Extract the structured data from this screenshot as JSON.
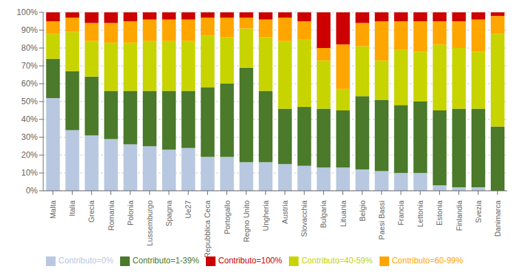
{
  "chart_data": {
    "type": "bar",
    "stacked": true,
    "categories": [
      "Malta",
      "Italia",
      "Grecia",
      "Romania",
      "Polonia",
      "Lussemburgo",
      "Spagna",
      "Ue27",
      "Repubblica Ceca",
      "Portogallo",
      "Regno Unito",
      "Ungheria",
      "Austria",
      "Slovacchia",
      "Bulgaria",
      "Lituania",
      "Belgio",
      "Paesi Bassi",
      "Francia",
      "Lettonia",
      "Estonia",
      "Finlandia",
      "Svezia",
      "Danimarca"
    ],
    "series": [
      {
        "name": "Contributo=0%",
        "color": "#b8c8e0",
        "values": [
          52,
          34,
          31,
          29,
          26,
          25,
          23,
          24,
          19,
          19,
          16,
          16,
          15,
          14,
          13,
          13,
          12,
          11,
          10,
          10,
          3,
          2,
          2,
          0
        ]
      },
      {
        "name": "Contributo=1-39%",
        "color": "#4a7a2a",
        "values": [
          22,
          33,
          33,
          27,
          30,
          31,
          33,
          32,
          39,
          41,
          53,
          40,
          31,
          33,
          33,
          32,
          41,
          40,
          38,
          40,
          42,
          44,
          44,
          36
        ]
      },
      {
        "name": "Contributo=40-59%",
        "color": "#c8d400",
        "values": [
          14,
          22,
          20,
          27,
          27,
          28,
          28,
          28,
          29,
          26,
          22,
          30,
          38,
          38,
          27,
          12,
          28,
          22,
          31,
          28,
          37,
          34,
          32,
          52
        ]
      },
      {
        "name": "Contributo=60-99%",
        "color": "#ffa500",
        "values": [
          7,
          8,
          10,
          11,
          12,
          12,
          12,
          12,
          10,
          11,
          6,
          10,
          13,
          10,
          7,
          25,
          13,
          22,
          16,
          17,
          13,
          15,
          18,
          10
        ]
      },
      {
        "name": "Contributo=100%",
        "color": "#cc0000",
        "values": [
          5,
          3,
          6,
          6,
          5,
          4,
          4,
          4,
          3,
          3,
          3,
          4,
          3,
          5,
          20,
          18,
          6,
          5,
          5,
          5,
          5,
          5,
          4,
          2
        ]
      }
    ],
    "ylim": [
      0,
      100
    ],
    "yticks": [
      {
        "value": 0,
        "label": "0%"
      },
      {
        "value": 10,
        "label": "10%"
      },
      {
        "value": 20,
        "label": "20%"
      },
      {
        "value": 30,
        "label": "30%"
      },
      {
        "value": 40,
        "label": "40%"
      },
      {
        "value": 50,
        "label": "50%"
      },
      {
        "value": 60,
        "label": "60%"
      },
      {
        "value": 70,
        "label": "70%"
      },
      {
        "value": 80,
        "label": "80%"
      },
      {
        "value": 90,
        "label": "90%"
      },
      {
        "value": 100,
        "label": "100%"
      }
    ],
    "grid": true,
    "legend": "bottom"
  }
}
